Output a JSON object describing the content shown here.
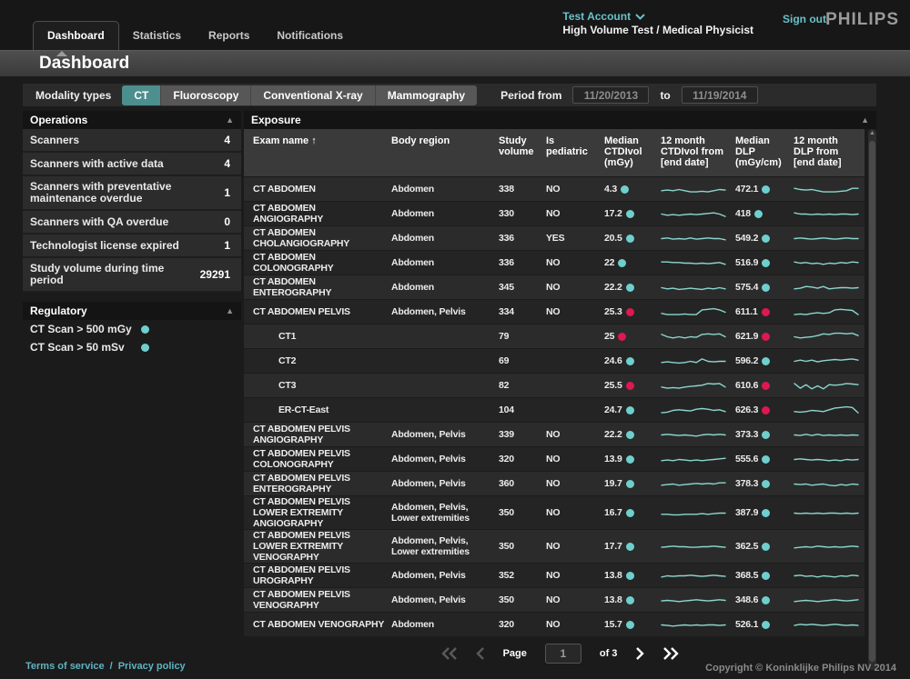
{
  "colors": {
    "accent_teal": "#4d8e8e",
    "link_teal": "#5fb3c4",
    "dot_ok": "#6ecfcf",
    "dot_alert": "#de1850",
    "spark": "#8bd6d0"
  },
  "header": {
    "tabs": [
      {
        "label": "Dashboard",
        "active": true
      },
      {
        "label": "Statistics",
        "active": false
      },
      {
        "label": "Reports",
        "active": false
      },
      {
        "label": "Notifications",
        "active": false
      }
    ],
    "account": {
      "name": "Test Account",
      "role_line": "High Volume Test / Medical Physicist"
    },
    "sign_out": "Sign out",
    "brand": "PHILIPS"
  },
  "page_title": "Dashboard",
  "filters": {
    "modality_label": "Modality types",
    "modalities": [
      {
        "label": "CT",
        "selected": true
      },
      {
        "label": "Fluoroscopy",
        "selected": false
      },
      {
        "label": "Conventional X-ray",
        "selected": false
      },
      {
        "label": "Mammography",
        "selected": false
      }
    ],
    "period_from_label": "Period from",
    "period_from_value": "11/20/2013",
    "to_label": "to",
    "period_to_value": "11/19/2014"
  },
  "sidebar": {
    "operations": {
      "title": "Operations",
      "items": [
        {
          "label": "Scanners",
          "value": "4"
        },
        {
          "label": "Scanners with active data",
          "value": "4"
        },
        {
          "label": "Scanners with preventative maintenance overdue",
          "value": "1"
        },
        {
          "label": "Scanners with QA overdue",
          "value": "0"
        },
        {
          "label": "Technologist license expired",
          "value": "1"
        },
        {
          "label": "Study volume during time period",
          "value": "29291"
        }
      ]
    },
    "regulatory": {
      "title": "Regulatory",
      "items": [
        {
          "label": "CT Scan > 500 mGy",
          "status": "ok"
        },
        {
          "label": "CT Scan > 50 mSv",
          "status": "ok"
        }
      ]
    }
  },
  "table": {
    "title": "Exposure",
    "columns": [
      {
        "label": "Exam name",
        "sort": "↑"
      },
      {
        "label": "Body region"
      },
      {
        "label": "Study volume"
      },
      {
        "label": "Is pediatric"
      },
      {
        "label": "Median CTDIvol (mGy)"
      },
      {
        "label": "12 month CTDIvol from [end date]"
      },
      {
        "label": "Median DLP (mGy/cm)"
      },
      {
        "label": "12 month DLP from [end date]"
      }
    ],
    "rows": [
      {
        "name": "CT ABDOMEN",
        "indent": false,
        "body_region": "Abdomen",
        "study_volume": "338",
        "is_pediatric": "NO",
        "ctdivol": "4.3",
        "ctdivol_status": "ok",
        "ctdivol_spark": [
          4,
          4.5,
          4,
          5,
          4,
          3,
          3,
          3.5,
          3,
          4,
          5,
          4.5
        ],
        "dlp": "472.1",
        "dlp_status": "ok",
        "dlp_spark": [
          6,
          5,
          4.5,
          5,
          4,
          3,
          3,
          3,
          3.5,
          4,
          6,
          6
        ]
      },
      {
        "name": "CT ABDOMEN ANGIOGRAPHY",
        "indent": false,
        "body_region": "Abdomen",
        "study_volume": "330",
        "is_pediatric": "NO",
        "ctdivol": "17.2",
        "ctdivol_status": "ok",
        "ctdivol_spark": [
          5,
          4,
          4.5,
          4,
          4.5,
          5,
          4.5,
          5,
          5.5,
          6,
          5,
          3
        ],
        "dlp": "418",
        "dlp_status": "ok",
        "dlp_spark": [
          6,
          5,
          5,
          4.5,
          5,
          4.5,
          5,
          4.5,
          5,
          5,
          4.5,
          5
        ]
      },
      {
        "name": "CT ABDOMEN CHOLANGIOGRAPHY",
        "indent": false,
        "body_region": "Abdomen",
        "study_volume": "336",
        "is_pediatric": "YES",
        "ctdivol": "20.5",
        "ctdivol_status": "ok",
        "ctdivol_spark": [
          5,
          5.5,
          4.5,
          5,
          4.5,
          5.5,
          4.5,
          5,
          5.5,
          5,
          5,
          4
        ],
        "dlp": "549.2",
        "dlp_status": "ok",
        "dlp_spark": [
          5,
          5.5,
          5,
          4.5,
          5,
          5.5,
          5,
          4.5,
          5,
          5.5,
          5,
          5
        ]
      },
      {
        "name": "CT ABDOMEN COLONOGRAPHY",
        "indent": false,
        "body_region": "Abdomen",
        "study_volume": "336",
        "is_pediatric": "NO",
        "ctdivol": "22",
        "ctdivol_status": "ok",
        "ctdivol_spark": [
          6,
          6,
          5.5,
          5.5,
          5,
          5,
          4.5,
          5,
          4.5,
          5,
          5.5,
          4
        ],
        "dlp": "516.9",
        "dlp_status": "ok",
        "dlp_spark": [
          6,
          5,
          5.5,
          4.5,
          5,
          4,
          5,
          4.5,
          5.5,
          5,
          6,
          5.5
        ]
      },
      {
        "name": "CT ABDOMEN ENTEROGRAPHY",
        "indent": false,
        "body_region": "Abdomen",
        "study_volume": "345",
        "is_pediatric": "NO",
        "ctdivol": "22.2",
        "ctdivol_status": "ok",
        "ctdivol_spark": [
          5,
          4,
          4.5,
          3.5,
          4,
          4.5,
          4,
          3.5,
          4.5,
          4,
          5,
          4
        ],
        "dlp": "575.4",
        "dlp_status": "ok",
        "dlp_spark": [
          4,
          4.5,
          6,
          5.5,
          4.5,
          6,
          4,
          4.5,
          5,
          5,
          4.5,
          5
        ]
      },
      {
        "name": "CT ABDOMEN PELVIS",
        "indent": false,
        "body_region": "Abdomen, Pelvis",
        "study_volume": "334",
        "is_pediatric": "NO",
        "ctdivol": "25.3",
        "ctdivol_status": "alert",
        "ctdivol_spark": [
          4,
          3,
          3,
          3,
          3.5,
          3,
          3,
          7,
          7.5,
          8,
          7,
          5
        ],
        "dlp": "611.1",
        "dlp_status": "alert",
        "dlp_spark": [
          3,
          3.5,
          3,
          4,
          4.5,
          4,
          4.5,
          7,
          7.5,
          7,
          6.5,
          3
        ]
      },
      {
        "name": "CT1",
        "indent": true,
        "body_region": "",
        "study_volume": "79",
        "is_pediatric": "",
        "ctdivol": "25",
        "ctdivol_status": "alert",
        "ctdivol_spark": [
          7,
          5,
          4,
          5,
          4,
          5,
          4.5,
          7,
          7.5,
          7,
          7.5,
          5
        ],
        "dlp": "621.9",
        "dlp_status": "alert",
        "dlp_spark": [
          5,
          4,
          4.5,
          5,
          6,
          7.5,
          7,
          8,
          8,
          7.5,
          8,
          6
        ]
      },
      {
        "name": "CT2",
        "indent": true,
        "body_region": "",
        "study_volume": "69",
        "is_pediatric": "",
        "ctdivol": "24.6",
        "ctdivol_status": "ok",
        "ctdivol_spark": [
          4,
          4.5,
          4,
          3.5,
          4,
          5,
          4,
          7,
          5,
          4.5,
          5,
          5
        ],
        "dlp": "596.2",
        "dlp_status": "ok",
        "dlp_spark": [
          5,
          6,
          5,
          6,
          4.5,
          5.5,
          6,
          6.5,
          6,
          6.5,
          7,
          6
        ]
      },
      {
        "name": "CT3",
        "indent": true,
        "body_region": "",
        "study_volume": "82",
        "is_pediatric": "",
        "ctdivol": "25.5",
        "ctdivol_status": "alert",
        "ctdivol_spark": [
          4,
          3,
          3.5,
          3,
          4,
          4.5,
          5,
          5.5,
          7,
          6.5,
          7,
          4
        ],
        "dlp": "610.6",
        "dlp_status": "alert",
        "dlp_spark": [
          7,
          3,
          6,
          2.5,
          5,
          2.5,
          6,
          5.5,
          6,
          7,
          6.5,
          6
        ]
      },
      {
        "name": "ER-CT-East",
        "indent": true,
        "body_region": "",
        "study_volume": "104",
        "is_pediatric": "",
        "ctdivol": "24.7",
        "ctdivol_status": "ok",
        "ctdivol_spark": [
          3,
          3.5,
          5,
          5.5,
          5,
          4.5,
          6,
          6.5,
          6,
          5,
          5.5,
          4
        ],
        "dlp": "626.3",
        "dlp_status": "alert",
        "dlp_spark": [
          4,
          3.5,
          4,
          5,
          4.5,
          4,
          5.5,
          7,
          7.5,
          8,
          7.5,
          3
        ]
      },
      {
        "name": "CT ABDOMEN PELVIS ANGIOGRAPHY",
        "indent": false,
        "body_region": "Abdomen, Pelvis",
        "study_volume": "339",
        "is_pediatric": "NO",
        "ctdivol": "22.2",
        "ctdivol_status": "ok",
        "ctdivol_spark": [
          5,
          5.5,
          5,
          4.5,
          5,
          4.5,
          4,
          5,
          5.5,
          5,
          5.5,
          5
        ],
        "dlp": "373.3",
        "dlp_status": "ok",
        "dlp_spark": [
          5,
          4.5,
          5.5,
          4.5,
          5.5,
          4.5,
          5,
          4.5,
          5,
          4.5,
          5,
          4.8
        ]
      },
      {
        "name": "CT ABDOMEN PELVIS COLONOGRAPHY",
        "indent": false,
        "body_region": "Abdomen, Pelvis",
        "study_volume": "320",
        "is_pediatric": "NO",
        "ctdivol": "13.9",
        "ctdivol_status": "ok",
        "ctdivol_spark": [
          4,
          4.5,
          4,
          5,
          4.5,
          4,
          4.5,
          4,
          4.5,
          5,
          5.5,
          6
        ],
        "dlp": "555.6",
        "dlp_status": "ok",
        "dlp_spark": [
          5,
          5.5,
          5,
          4.5,
          5,
          4.5,
          4,
          4.5,
          4,
          5,
          4.5,
          5
        ]
      },
      {
        "name": "CT ABDOMEN PELVIS ENTEROGRAPHY",
        "indent": false,
        "body_region": "Abdomen, Pelvis",
        "study_volume": "360",
        "is_pediatric": "NO",
        "ctdivol": "19.7",
        "ctdivol_status": "ok",
        "ctdivol_spark": [
          4,
          4.5,
          5,
          4,
          4.5,
          5,
          5.5,
          5,
          5.5,
          5,
          6,
          6
        ],
        "dlp": "378.3",
        "dlp_status": "ok",
        "dlp_spark": [
          5,
          4.5,
          5,
          4,
          4.5,
          5,
          4,
          3.5,
          4.5,
          4,
          5,
          4.5
        ]
      },
      {
        "name": "CT ABDOMEN PELVIS LOWER EXTREMITY ANGIOGRAPHY",
        "indent": false,
        "body_region": "Abdomen, Pelvis, Lower extremities",
        "study_volume": "350",
        "is_pediatric": "NO",
        "ctdivol": "16.7",
        "ctdivol_status": "ok",
        "ctdivol_spark": [
          4,
          4,
          3.5,
          3.5,
          4,
          4,
          4,
          4.5,
          4,
          4.5,
          5,
          5
        ],
        "dlp": "387.9",
        "dlp_status": "ok",
        "dlp_spark": [
          5,
          4.5,
          5,
          4.5,
          5,
          4.5,
          5,
          5,
          4.5,
          5,
          4.5,
          5
        ]
      },
      {
        "name": "CT ABDOMEN PELVIS LOWER EXTREMITY VENOGRAPHY",
        "indent": false,
        "body_region": "Abdomen, Pelvis, Lower extremities",
        "study_volume": "350",
        "is_pediatric": "NO",
        "ctdivol": "17.7",
        "ctdivol_status": "ok",
        "ctdivol_spark": [
          4.5,
          5,
          5.5,
          5,
          5,
          4.5,
          4.5,
          5,
          5,
          5.5,
          5,
          4.5
        ],
        "dlp": "362.5",
        "dlp_status": "ok",
        "dlp_spark": [
          4,
          4.5,
          5,
          4.5,
          5.5,
          5,
          4.5,
          5,
          4.5,
          5,
          5.5,
          5
        ]
      },
      {
        "name": "CT ABDOMEN PELVIS UROGRAPHY",
        "indent": false,
        "body_region": "Abdomen, Pelvis",
        "study_volume": "352",
        "is_pediatric": "NO",
        "ctdivol": "13.8",
        "ctdivol_status": "ok",
        "ctdivol_spark": [
          4,
          5,
          4.5,
          5,
          5,
          5.5,
          5,
          4.5,
          5,
          5.5,
          5,
          4.5
        ],
        "dlp": "368.5",
        "dlp_status": "ok",
        "dlp_spark": [
          5,
          5.5,
          4.5,
          5,
          4,
          5,
          4.5,
          4,
          5,
          4.5,
          5.5,
          5
        ]
      },
      {
        "name": "CT ABDOMEN PELVIS VENOGRAPHY",
        "indent": false,
        "body_region": "Abdomen, Pelvis",
        "study_volume": "350",
        "is_pediatric": "NO",
        "ctdivol": "13.8",
        "ctdivol_status": "ok",
        "ctdivol_spark": [
          4.5,
          5,
          4.5,
          4,
          4.5,
          5,
          5.5,
          5,
          4.5,
          5,
          5.5,
          5
        ],
        "dlp": "348.6",
        "dlp_status": "ok",
        "dlp_spark": [
          4,
          4.5,
          5,
          4.5,
          4,
          4.5,
          5,
          5.5,
          5,
          4.5,
          5,
          5.5
        ]
      },
      {
        "name": "CT ABDOMEN VENOGRAPHY",
        "indent": false,
        "body_region": "Abdomen",
        "study_volume": "320",
        "is_pediatric": "NO",
        "ctdivol": "15.7",
        "ctdivol_status": "ok",
        "ctdivol_spark": [
          5,
          4.5,
          4,
          4.5,
          5,
          4.5,
          5,
          4.5,
          5,
          5,
          4.5,
          5
        ],
        "dlp": "526.1",
        "dlp_status": "ok",
        "dlp_spark": [
          4.5,
          5.5,
          5,
          5.5,
          5,
          4.5,
          5,
          5.5,
          5,
          4.5,
          5,
          4.5
        ]
      }
    ]
  },
  "pagination": {
    "page_label": "Page",
    "current": "1",
    "of_label": "of 3"
  },
  "footer": {
    "links": [
      "Terms of service",
      "Privacy policy"
    ],
    "separator": "/",
    "copyright": "Copyright © Koninklijke Philips NV 2014"
  }
}
